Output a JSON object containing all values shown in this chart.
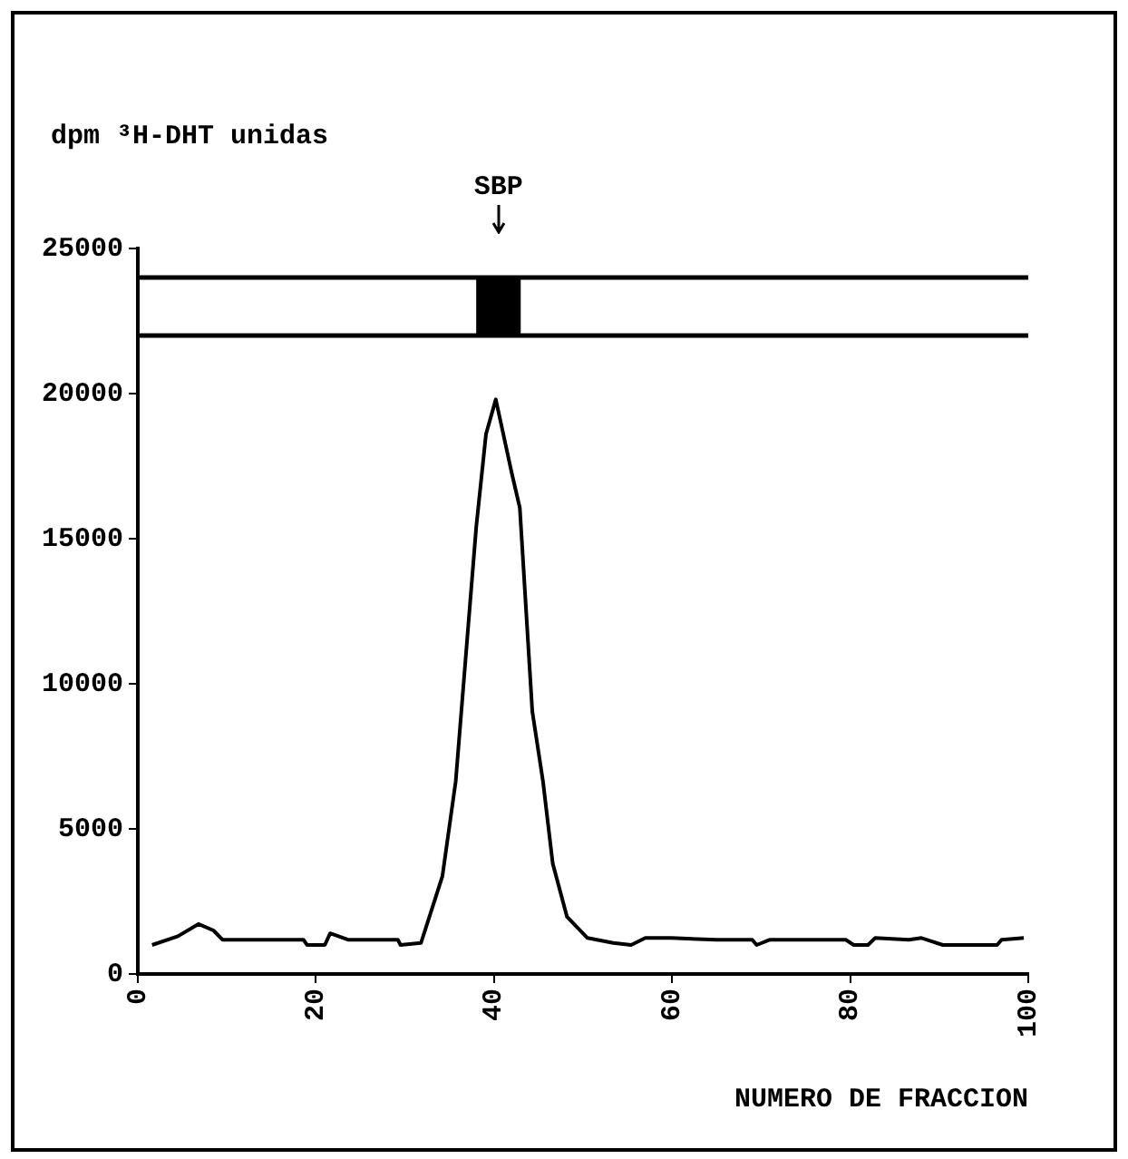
{
  "chart_data": {
    "type": "line",
    "ylabel": "dpm ³H-DHT unidas",
    "xlabel": "NUMERO DE FRACCION",
    "ref_lines": [
      {
        "axis": "y",
        "value": 24000,
        "color": "#000000"
      },
      {
        "axis": "y",
        "value": 22000,
        "color": "#000000"
      }
    ],
    "bands": [
      {
        "axis": "x",
        "from": 38,
        "to": 43,
        "label": "SBP",
        "color": "#000000"
      }
    ],
    "x": [
      1.6,
      4.5,
      6.8,
      8.5,
      9.5,
      18.6,
      19,
      21,
      21.6,
      23.6,
      29.2,
      29.5,
      31.8,
      34.2,
      35.7,
      38,
      39.1,
      40.2,
      42,
      42.9,
      44.3,
      45.5,
      46.6,
      48.2,
      50.5,
      53.4,
      55.4,
      57,
      59.9,
      65,
      69,
      69.5,
      71,
      73.6,
      79.5,
      80.4,
      82,
      82.8,
      86.6,
      88,
      90.4,
      96.5,
      97,
      99.5
    ],
    "values": [
      1000,
      1300,
      1720,
      1500,
      1180,
      1180,
      1000,
      1000,
      1400,
      1180,
      1180,
      1000,
      1070,
      3360,
      6640,
      15390,
      18600,
      19800,
      17250,
      16060,
      9050,
      6640,
      3800,
      1970,
      1240,
      1070,
      1000,
      1240,
      1240,
      1180,
      1180,
      1000,
      1180,
      1180,
      1180,
      1000,
      1000,
      1240,
      1180,
      1240,
      1000,
      1000,
      1180,
      1240
    ],
    "color": "#000000",
    "marker": "none",
    "xlim": [
      0,
      100
    ],
    "xticks": [
      0,
      20,
      40,
      60,
      80,
      100
    ],
    "ylim": [
      0,
      25000
    ],
    "yticks": [
      0,
      5000,
      10000,
      15000,
      20000,
      25000
    ]
  }
}
